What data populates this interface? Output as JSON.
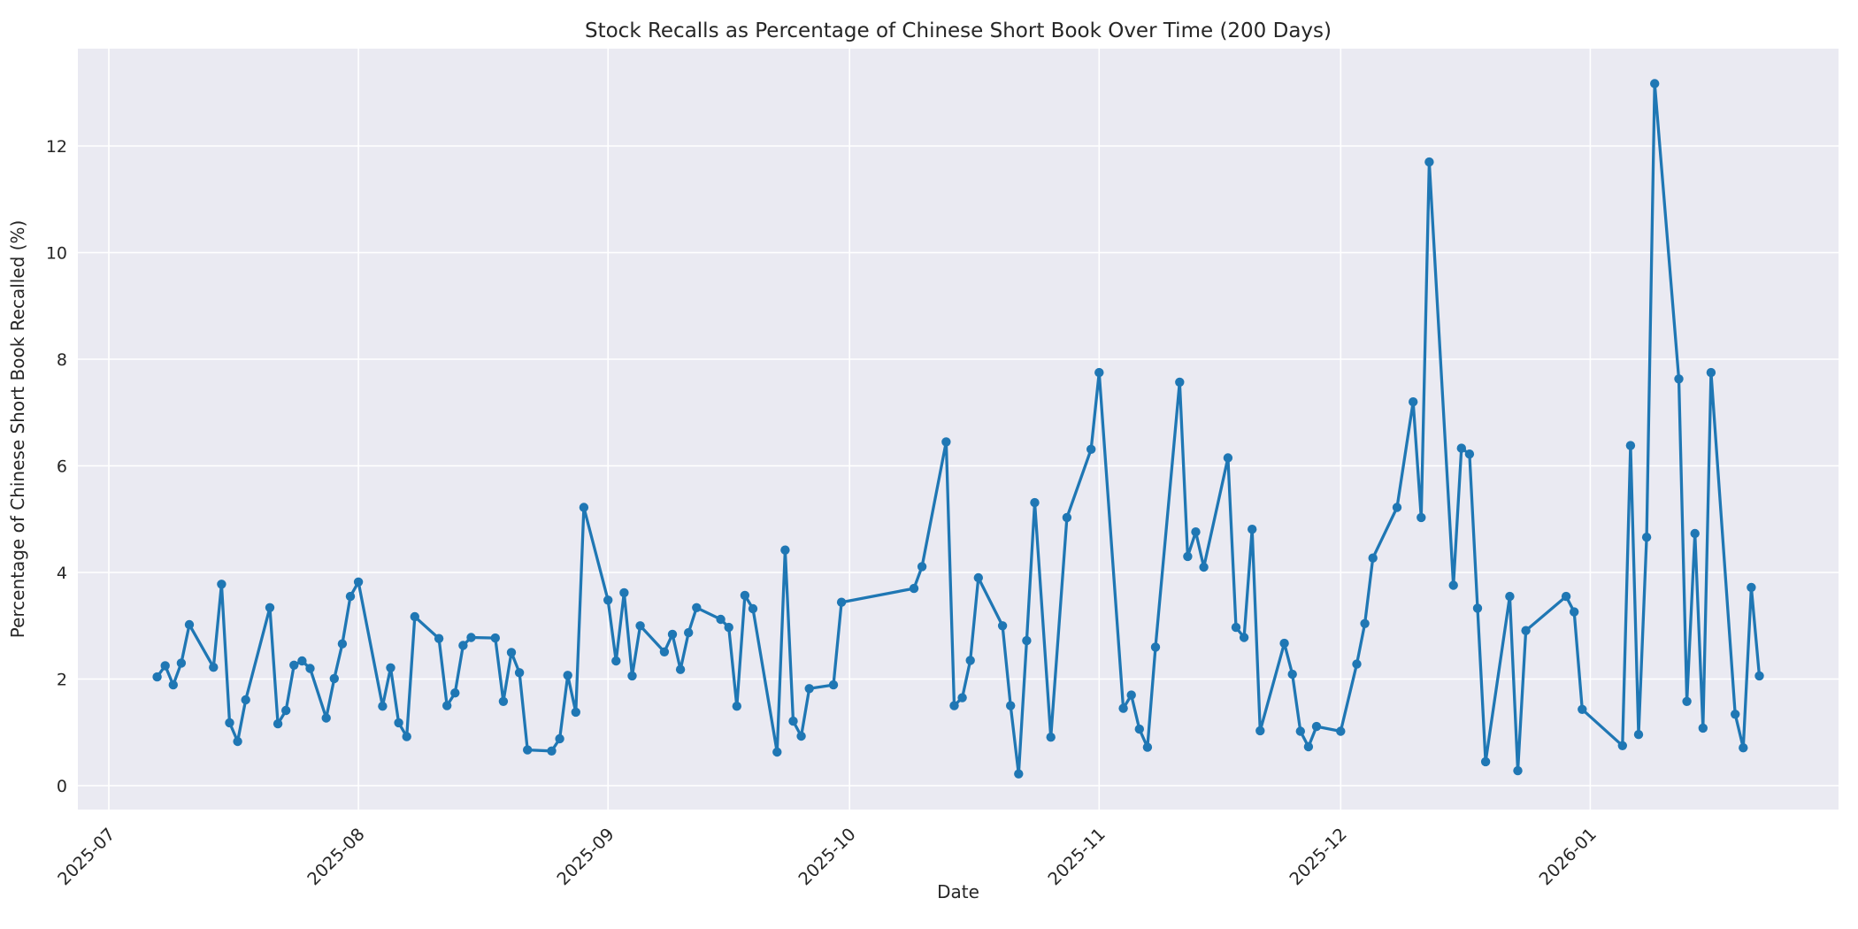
{
  "title": "Stock Recalls as Percentage of Chinese Short Book Over Time (200 Days)",
  "chart_data": {
    "type": "line",
    "title": "Stock Recalls as Percentage of Chinese Short Book Over Time (200 Days)",
    "xlabel": "Date",
    "ylabel": "Percentage of Chinese Short Book Recalled (%)",
    "legend": null,
    "grid": true,
    "style": {
      "line_color": "#1f77b4",
      "marker_color": "#1f77b4",
      "axes_background": "#eaeaf2",
      "grid_color": "#ffffff",
      "text_color": "#262626",
      "figure_background": "#ffffff"
    },
    "y_ticks": [
      0,
      2,
      4,
      6,
      8,
      10,
      12
    ],
    "x_ticks": [
      "2025-07",
      "2025-08",
      "2025-09",
      "2025-10",
      "2025-11",
      "2025-12",
      "2026-01"
    ],
    "ylim": [
      -0.45,
      13.85
    ],
    "xlim": [
      "2025-06-27",
      "2026-02-01"
    ],
    "series": [
      {
        "name": "recall_percentage",
        "x": [
          "2025-07-07",
          "2025-07-08",
          "2025-07-09",
          "2025-07-10",
          "2025-07-11",
          "2025-07-14",
          "2025-07-15",
          "2025-07-16",
          "2025-07-17",
          "2025-07-18",
          "2025-07-21",
          "2025-07-22",
          "2025-07-23",
          "2025-07-24",
          "2025-07-25",
          "2025-07-26",
          "2025-07-28",
          "2025-07-29",
          "2025-07-30",
          "2025-07-31",
          "2025-08-01",
          "2025-08-04",
          "2025-08-05",
          "2025-08-06",
          "2025-08-07",
          "2025-08-08",
          "2025-08-11",
          "2025-08-12",
          "2025-08-13",
          "2025-08-14",
          "2025-08-15",
          "2025-08-18",
          "2025-08-19",
          "2025-08-20",
          "2025-08-21",
          "2025-08-22",
          "2025-08-25",
          "2025-08-26",
          "2025-08-27",
          "2025-08-28",
          "2025-08-29",
          "2025-09-01",
          "2025-09-02",
          "2025-09-03",
          "2025-09-04",
          "2025-09-05",
          "2025-09-08",
          "2025-09-09",
          "2025-09-10",
          "2025-09-11",
          "2025-09-12",
          "2025-09-15",
          "2025-09-16",
          "2025-09-17",
          "2025-09-18",
          "2025-09-19",
          "2025-09-22",
          "2025-09-23",
          "2025-09-24",
          "2025-09-25",
          "2025-09-26",
          "2025-09-29",
          "2025-09-30",
          "2025-10-09",
          "2025-10-10",
          "2025-10-13",
          "2025-10-14",
          "2025-10-15",
          "2025-10-16",
          "2025-10-17",
          "2025-10-20",
          "2025-10-21",
          "2025-10-22",
          "2025-10-23",
          "2025-10-24",
          "2025-10-26",
          "2025-10-28",
          "2025-10-31",
          "2025-11-01",
          "2025-11-04",
          "2025-11-05",
          "2025-11-06",
          "2025-11-07",
          "2025-11-08",
          "2025-11-11",
          "2025-11-12",
          "2025-11-13",
          "2025-11-14",
          "2025-11-17",
          "2025-11-18",
          "2025-11-19",
          "2025-11-20",
          "2025-11-21",
          "2025-11-24",
          "2025-11-25",
          "2025-11-26",
          "2025-11-27",
          "2025-11-28",
          "2025-12-01",
          "2025-12-03",
          "2025-12-04",
          "2025-12-05",
          "2025-12-08",
          "2025-12-10",
          "2025-12-11",
          "2025-12-12",
          "2025-12-15",
          "2025-12-16",
          "2025-12-17",
          "2025-12-18",
          "2025-12-19",
          "2025-12-22",
          "2025-12-23",
          "2025-12-24",
          "2025-12-29",
          "2025-12-30",
          "2025-12-31",
          "2026-01-05",
          "2026-01-06",
          "2026-01-07",
          "2026-01-08",
          "2026-01-09",
          "2026-01-12",
          "2026-01-13",
          "2026-01-14",
          "2026-01-15",
          "2026-01-16",
          "2026-01-19",
          "2026-01-20",
          "2026-01-21",
          "2026-01-22"
        ],
        "y": [
          2.04,
          2.25,
          1.89,
          2.3,
          3.02,
          2.22,
          3.78,
          1.18,
          0.83,
          1.61,
          3.34,
          1.16,
          1.41,
          2.26,
          2.34,
          2.2,
          1.27,
          2.01,
          2.66,
          3.55,
          3.82,
          1.49,
          2.21,
          1.18,
          0.92,
          3.17,
          2.76,
          1.5,
          1.74,
          2.63,
          2.78,
          2.77,
          1.58,
          2.5,
          2.12,
          0.67,
          0.65,
          0.88,
          2.07,
          1.38,
          5.22,
          3.48,
          2.34,
          3.62,
          2.06,
          3.0,
          2.51,
          2.84,
          2.18,
          2.87,
          3.34,
          3.12,
          2.97,
          1.49,
          3.57,
          3.32,
          0.63,
          4.42,
          1.21,
          0.93,
          1.82,
          1.89,
          3.44,
          3.7,
          4.11,
          6.45,
          1.5,
          1.65,
          2.35,
          3.9,
          3.0,
          1.5,
          0.22,
          2.72,
          5.31,
          0.91,
          5.03,
          6.31,
          7.75,
          1.45,
          1.7,
          1.06,
          0.72,
          2.6,
          7.57,
          4.3,
          4.76,
          4.1,
          6.15,
          2.97,
          2.78,
          4.81,
          1.03,
          2.67,
          2.09,
          1.02,
          0.73,
          1.11,
          1.02,
          2.28,
          3.04,
          4.27,
          5.22,
          7.2,
          5.03,
          11.7,
          3.76,
          6.33,
          6.22,
          3.33,
          0.45,
          3.55,
          0.28,
          2.91,
          3.55,
          3.26,
          1.43,
          0.75,
          6.38,
          0.96,
          4.66,
          13.17,
          7.63,
          1.58,
          4.73,
          1.08,
          7.75,
          1.34,
          0.71,
          3.72,
          2.06
        ]
      }
    ]
  }
}
